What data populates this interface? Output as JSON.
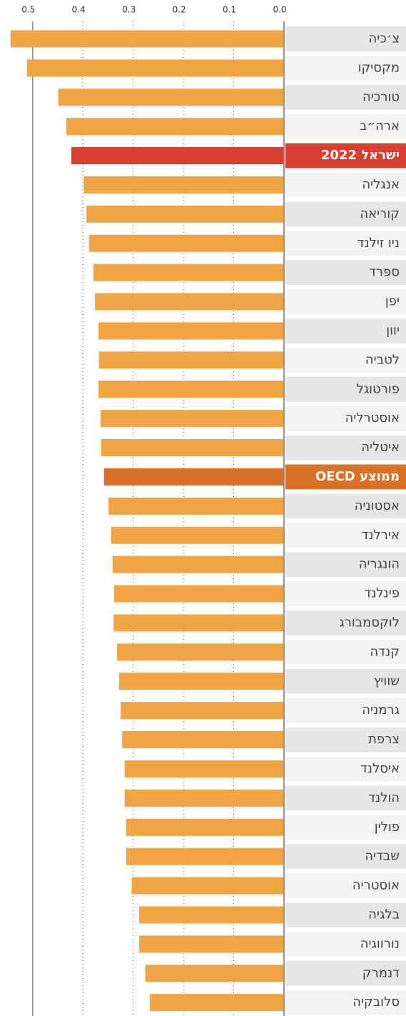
{
  "chart_data": {
    "type": "bar",
    "orientation": "horizontal",
    "reversed_x": true,
    "categories": [
      "צ׳כיה",
      "מקסיקו",
      "טורכיה",
      "ארה״ב",
      "ישראל 2022",
      "אנגליה",
      "קוריאה",
      "ניו זילנד",
      "ספרד",
      "יפן",
      "יוון",
      "לטביה",
      "פורטוגל",
      "אוסטרליה",
      "איטליה",
      "ממוצע OECD",
      "אסטוניה",
      "אירלנד",
      "הונגריה",
      "פינלנד",
      "לוקסמבורג",
      "קנדה",
      "שוויץ",
      "גרמניה",
      "צרפת",
      "איסלנד",
      "הולנד",
      "פולין",
      "שבדיה",
      "אוסטריה",
      "בלגיה",
      "נורווגיה",
      "דנמרק",
      "סלובקיה"
    ],
    "values": [
      0.544,
      0.511,
      0.449,
      0.433,
      0.423,
      0.398,
      0.393,
      0.388,
      0.379,
      0.376,
      0.369,
      0.368,
      0.369,
      0.365,
      0.364,
      0.358,
      0.349,
      0.344,
      0.341,
      0.338,
      0.339,
      0.332,
      0.328,
      0.325,
      0.322,
      0.317,
      0.317,
      0.314,
      0.314,
      0.303,
      0.288,
      0.288,
      0.276,
      0.267
    ],
    "color": "#f0a444",
    "colors": [
      "#f0a444",
      "#f0a444",
      "#f0a444",
      "#f0a444",
      "#d93f30",
      "#f0a444",
      "#f0a444",
      "#f0a444",
      "#f0a444",
      "#f0a444",
      "#f0a444",
      "#f0a444",
      "#f0a444",
      "#f0a444",
      "#f0a444",
      "#d97028",
      "#f0a444",
      "#f0a444",
      "#f0a444",
      "#f0a444",
      "#f0a444",
      "#f0a444",
      "#f0a444",
      "#f0a444",
      "#f0a444",
      "#f0a444",
      "#f0a444",
      "#f0a444",
      "#f0a444",
      "#f0a444",
      "#f0a444",
      "#f0a444",
      "#f0a444",
      "#f0a444"
    ],
    "xlim": [
      0,
      0.565
    ],
    "xticks": [
      {
        "value": 0.5,
        "label": "0.5"
      },
      {
        "value": 0.4,
        "label": "0.4"
      },
      {
        "value": 0.3,
        "label": "0.3"
      },
      {
        "value": 0.2,
        "label": "0.2"
      },
      {
        "value": 0.1,
        "label": "0.1"
      },
      {
        "value": 0,
        "label": "0.0"
      }
    ],
    "grid": true
  }
}
